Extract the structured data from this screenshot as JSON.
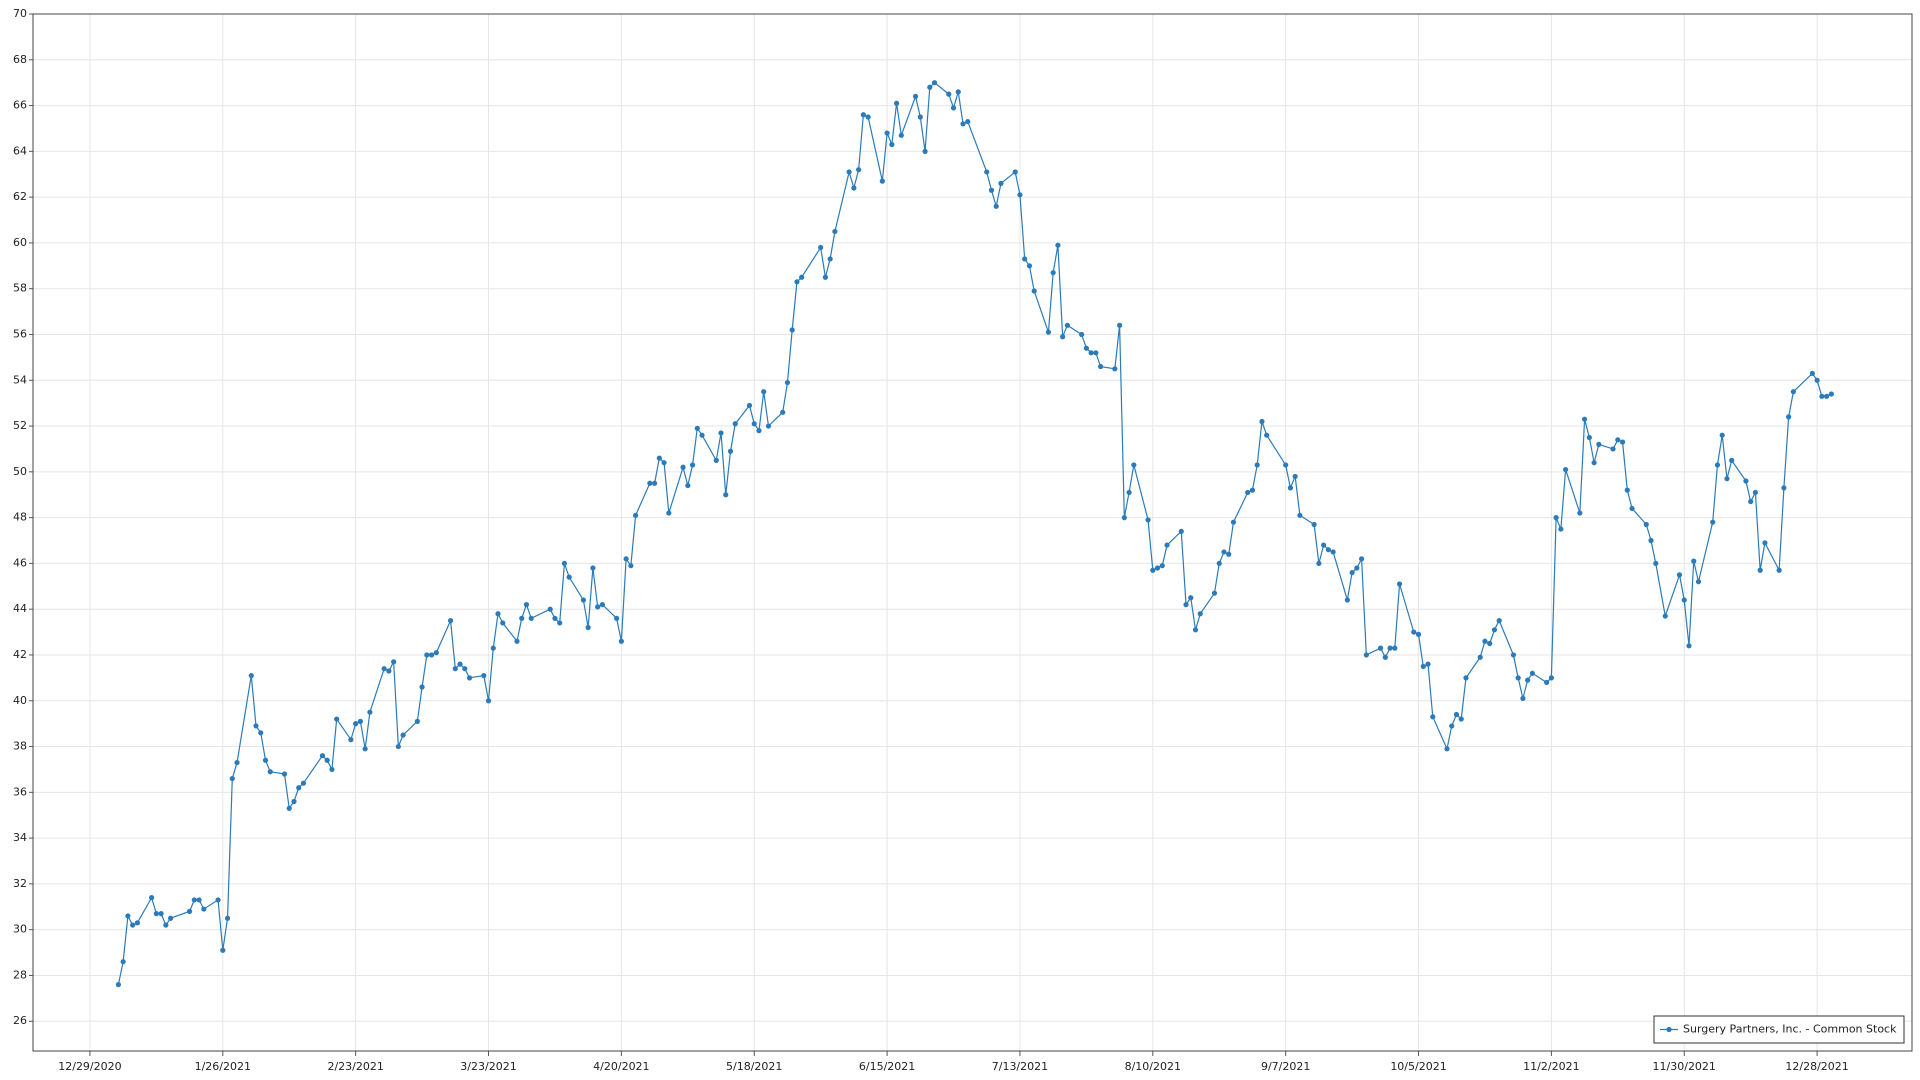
{
  "chart_data": {
    "type": "line",
    "x": [
      "1/4/2021",
      "1/5/2021",
      "1/6/2021",
      "1/7/2021",
      "1/8/2021",
      "1/11/2021",
      "1/12/2021",
      "1/13/2021",
      "1/14/2021",
      "1/15/2021",
      "1/19/2021",
      "1/20/2021",
      "1/21/2021",
      "1/22/2021",
      "1/25/2021",
      "1/26/2021",
      "1/27/2021",
      "1/28/2021",
      "1/29/2021",
      "2/1/2021",
      "2/2/2021",
      "2/3/2021",
      "2/4/2021",
      "2/5/2021",
      "2/8/2021",
      "2/9/2021",
      "2/10/2021",
      "2/11/2021",
      "2/12/2021",
      "2/16/2021",
      "2/17/2021",
      "2/18/2021",
      "2/19/2021",
      "2/22/2021",
      "2/23/2021",
      "2/24/2021",
      "2/25/2021",
      "2/26/2021",
      "3/1/2021",
      "3/2/2021",
      "3/3/2021",
      "3/4/2021",
      "3/5/2021",
      "3/8/2021",
      "3/9/2021",
      "3/10/2021",
      "3/11/2021",
      "3/12/2021",
      "3/15/2021",
      "3/16/2021",
      "3/17/2021",
      "3/18/2021",
      "3/19/2021",
      "3/22/2021",
      "3/23/2021",
      "3/24/2021",
      "3/25/2021",
      "3/26/2021",
      "3/29/2021",
      "3/30/2021",
      "3/31/2021",
      "4/1/2021",
      "4/5/2021",
      "4/6/2021",
      "4/7/2021",
      "4/8/2021",
      "4/9/2021",
      "4/12/2021",
      "4/13/2021",
      "4/14/2021",
      "4/15/2021",
      "4/16/2021",
      "4/19/2021",
      "4/20/2021",
      "4/21/2021",
      "4/22/2021",
      "4/23/2021",
      "4/26/2021",
      "4/27/2021",
      "4/28/2021",
      "4/29/2021",
      "4/30/2021",
      "5/3/2021",
      "5/4/2021",
      "5/5/2021",
      "5/6/2021",
      "5/7/2021",
      "5/10/2021",
      "5/11/2021",
      "5/12/2021",
      "5/13/2021",
      "5/14/2021",
      "5/17/2021",
      "5/18/2021",
      "5/19/2021",
      "5/20/2021",
      "5/21/2021",
      "5/24/2021",
      "5/25/2021",
      "5/26/2021",
      "5/27/2021",
      "5/28/2021",
      "6/1/2021",
      "6/2/2021",
      "6/3/2021",
      "6/4/2021",
      "6/7/2021",
      "6/8/2021",
      "6/9/2021",
      "6/10/2021",
      "6/11/2021",
      "6/14/2021",
      "6/15/2021",
      "6/16/2021",
      "6/17/2021",
      "6/18/2021",
      "6/21/2021",
      "6/22/2021",
      "6/23/2021",
      "6/24/2021",
      "6/25/2021",
      "6/28/2021",
      "6/29/2021",
      "6/30/2021",
      "7/1/2021",
      "7/2/2021",
      "7/6/2021",
      "7/7/2021",
      "7/8/2021",
      "7/9/2021",
      "7/12/2021",
      "7/13/2021",
      "7/14/2021",
      "7/15/2021",
      "7/16/2021",
      "7/19/2021",
      "7/20/2021",
      "7/21/2021",
      "7/22/2021",
      "7/23/2021",
      "7/26/2021",
      "7/27/2021",
      "7/28/2021",
      "7/29/2021",
      "7/30/2021",
      "8/2/2021",
      "8/3/2021",
      "8/4/2021",
      "8/5/2021",
      "8/6/2021",
      "8/9/2021",
      "8/10/2021",
      "8/11/2021",
      "8/12/2021",
      "8/13/2021",
      "8/16/2021",
      "8/17/2021",
      "8/18/2021",
      "8/19/2021",
      "8/20/2021",
      "8/23/2021",
      "8/24/2021",
      "8/25/2021",
      "8/26/2021",
      "8/27/2021",
      "8/30/2021",
      "8/31/2021",
      "9/1/2021",
      "9/2/2021",
      "9/3/2021",
      "9/7/2021",
      "9/8/2021",
      "9/9/2021",
      "9/10/2021",
      "9/13/2021",
      "9/14/2021",
      "9/15/2021",
      "9/16/2021",
      "9/17/2021",
      "9/20/2021",
      "9/21/2021",
      "9/22/2021",
      "9/23/2021",
      "9/24/2021",
      "9/27/2021",
      "9/28/2021",
      "9/29/2021",
      "9/30/2021",
      "10/1/2021",
      "10/4/2021",
      "10/5/2021",
      "10/6/2021",
      "10/7/2021",
      "10/8/2021",
      "10/11/2021",
      "10/12/2021",
      "10/13/2021",
      "10/14/2021",
      "10/15/2021",
      "10/18/2021",
      "10/19/2021",
      "10/20/2021",
      "10/21/2021",
      "10/22/2021",
      "10/25/2021",
      "10/26/2021",
      "10/27/2021",
      "10/28/2021",
      "10/29/2021",
      "11/1/2021",
      "11/2/2021",
      "11/3/2021",
      "11/4/2021",
      "11/5/2021",
      "11/8/2021",
      "11/9/2021",
      "11/10/2021",
      "11/11/2021",
      "11/12/2021",
      "11/15/2021",
      "11/16/2021",
      "11/17/2021",
      "11/18/2021",
      "11/19/2021",
      "11/22/2021",
      "11/23/2021",
      "11/24/2021",
      "11/26/2021",
      "11/29/2021",
      "11/30/2021",
      "12/1/2021",
      "12/2/2021",
      "12/3/2021",
      "12/6/2021",
      "12/7/2021",
      "12/8/2021",
      "12/9/2021",
      "12/10/2021",
      "12/13/2021",
      "12/14/2021",
      "12/15/2021",
      "12/16/2021",
      "12/17/2021",
      "12/20/2021",
      "12/21/2021",
      "12/22/2021",
      "12/23/2021",
      "12/27/2021",
      "12/28/2021",
      "12/29/2021",
      "12/30/2021",
      "12/31/2021"
    ],
    "series": [
      {
        "name": "Surgery Partners, Inc. - Common Stock",
        "color": "#2b7bba",
        "values": [
          27.6,
          28.6,
          30.6,
          30.2,
          30.3,
          31.4,
          30.7,
          30.7,
          30.2,
          30.5,
          30.8,
          31.3,
          31.3,
          30.9,
          31.3,
          29.1,
          30.5,
          36.6,
          37.3,
          41.1,
          38.9,
          38.6,
          37.4,
          36.9,
          36.8,
          35.3,
          35.6,
          36.2,
          36.4,
          37.6,
          37.4,
          37.0,
          39.2,
          38.3,
          39.0,
          39.1,
          37.9,
          39.5,
          41.4,
          41.3,
          41.7,
          38.0,
          38.5,
          39.1,
          40.6,
          42.0,
          42.0,
          42.1,
          43.5,
          41.4,
          41.6,
          41.4,
          41.0,
          41.1,
          40.0,
          42.3,
          43.8,
          43.4,
          42.6,
          43.6,
          44.2,
          43.6,
          44.0,
          43.6,
          43.4,
          46.0,
          45.4,
          44.4,
          43.2,
          45.8,
          44.1,
          44.2,
          43.6,
          42.6,
          46.2,
          45.9,
          48.1,
          49.5,
          49.5,
          50.6,
          50.4,
          48.2,
          50.2,
          49.4,
          50.3,
          51.9,
          51.6,
          50.5,
          51.7,
          49.0,
          50.9,
          52.1,
          52.9,
          52.1,
          51.8,
          53.5,
          52.0,
          52.6,
          53.9,
          56.2,
          58.3,
          58.5,
          59.8,
          58.5,
          59.3,
          60.5,
          63.1,
          62.4,
          63.2,
          65.6,
          65.5,
          62.7,
          64.8,
          64.3,
          66.1,
          64.7,
          66.4,
          65.5,
          64.0,
          66.8,
          67.0,
          66.5,
          65.9,
          66.6,
          65.2,
          65.3,
          63.1,
          62.3,
          61.6,
          62.6,
          63.1,
          62.1,
          59.3,
          59.0,
          57.9,
          56.1,
          58.7,
          59.9,
          55.9,
          56.4,
          56.0,
          55.4,
          55.2,
          55.2,
          54.6,
          54.5,
          56.4,
          48.0,
          49.1,
          50.3,
          47.9,
          45.7,
          45.8,
          45.9,
          46.8,
          47.4,
          44.2,
          44.5,
          43.1,
          43.8,
          44.7,
          46.0,
          46.5,
          46.4,
          47.8,
          49.1,
          49.2,
          50.3,
          52.2,
          51.6,
          50.3,
          49.3,
          49.8,
          48.1,
          47.7,
          46.0,
          46.8,
          46.6,
          46.5,
          44.4,
          45.6,
          45.8,
          46.2,
          42.0,
          42.3,
          41.9,
          42.3,
          42.3,
          45.1,
          43.0,
          42.9,
          41.5,
          41.6,
          39.3,
          37.9,
          38.9,
          39.4,
          39.2,
          41.0,
          41.9,
          42.6,
          42.5,
          43.1,
          43.5,
          42.0,
          41.0,
          40.1,
          40.9,
          41.2,
          40.8,
          41.0,
          48.0,
          47.5,
          50.1,
          48.2,
          52.3,
          51.5,
          50.4,
          51.2,
          51.0,
          51.4,
          51.3,
          49.2,
          48.4,
          47.7,
          47.0,
          46.0,
          43.7,
          45.5,
          44.4,
          42.4,
          46.1,
          45.2,
          47.8,
          50.3,
          51.6,
          49.7,
          50.5,
          49.6,
          48.7,
          49.1,
          45.7,
          46.9,
          45.7,
          49.3,
          52.4,
          53.5,
          54.3,
          54.0,
          53.3,
          53.3,
          53.4
        ]
      }
    ],
    "xlim": [
      "12/17/2020",
      "1/17/2022"
    ],
    "xticks": [
      "12/29/2020",
      "1/26/2021",
      "2/23/2021",
      "3/23/2021",
      "4/20/2021",
      "5/18/2021",
      "6/15/2021",
      "7/13/2021",
      "8/10/2021",
      "9/7/2021",
      "10/5/2021",
      "11/2/2021",
      "11/30/2021",
      "12/28/2021"
    ],
    "ylim": [
      24.7,
      70
    ],
    "yticks": [
      26,
      28,
      30,
      32,
      34,
      36,
      38,
      40,
      42,
      44,
      46,
      48,
      50,
      52,
      54,
      56,
      58,
      60,
      62,
      64,
      66,
      68,
      70
    ],
    "grid": true,
    "legend": "lower right"
  }
}
